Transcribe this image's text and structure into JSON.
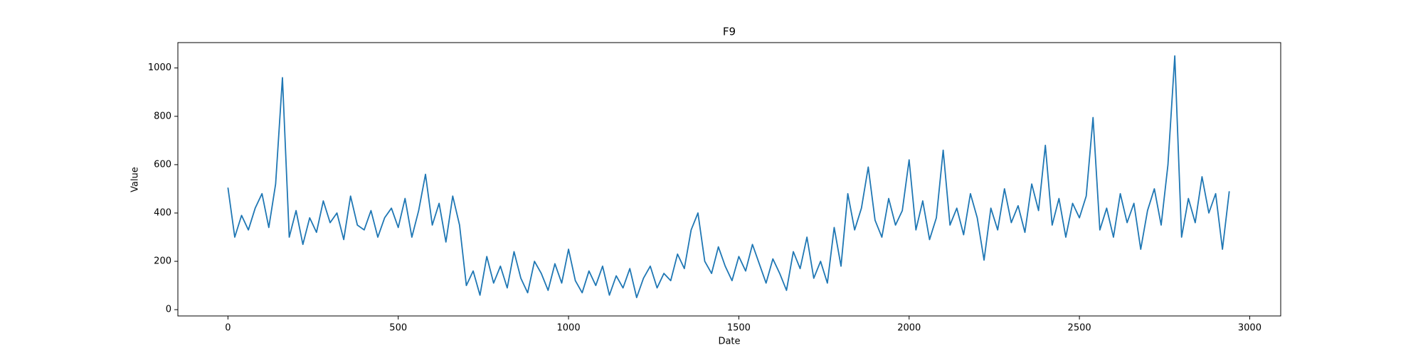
{
  "chart_data": {
    "type": "line",
    "title": "F9",
    "x_label": "Date",
    "y_label": "Value",
    "color": "#1f77b4",
    "x": [
      0,
      20,
      40,
      60,
      80,
      100,
      120,
      140,
      160,
      180,
      200,
      220,
      240,
      260,
      280,
      300,
      320,
      340,
      360,
      380,
      400,
      420,
      440,
      460,
      480,
      500,
      520,
      540,
      560,
      580,
      600,
      620,
      640,
      660,
      680,
      700,
      720,
      740,
      760,
      780,
      800,
      820,
      840,
      860,
      880,
      900,
      920,
      940,
      960,
      980,
      1000,
      1020,
      1040,
      1060,
      1080,
      1100,
      1120,
      1140,
      1160,
      1180,
      1200,
      1220,
      1240,
      1260,
      1280,
      1300,
      1320,
      1340,
      1360,
      1380,
      1400,
      1420,
      1440,
      1460,
      1480,
      1500,
      1520,
      1540,
      1560,
      1580,
      1600,
      1620,
      1640,
      1660,
      1680,
      1700,
      1720,
      1740,
      1760,
      1780,
      1800,
      1820,
      1840,
      1860,
      1880,
      1900,
      1920,
      1940,
      1960,
      1980,
      2000,
      2020,
      2040,
      2060,
      2080,
      2100,
      2120,
      2140,
      2160,
      2180,
      2200,
      2220,
      2240,
      2260,
      2280,
      2300,
      2320,
      2340,
      2360,
      2380,
      2400,
      2420,
      2440,
      2460,
      2480,
      2500,
      2520,
      2540,
      2560,
      2580,
      2600,
      2620,
      2640,
      2660,
      2680,
      2700,
      2720,
      2740,
      2760,
      2780,
      2800,
      2820,
      2840,
      2860,
      2880,
      2900,
      2920,
      2940
    ],
    "values": [
      505,
      300,
      390,
      330,
      420,
      480,
      340,
      520,
      960,
      300,
      410,
      270,
      380,
      320,
      450,
      360,
      400,
      290,
      470,
      350,
      330,
      410,
      300,
      380,
      420,
      340,
      460,
      300,
      410,
      560,
      350,
      440,
      280,
      470,
      350,
      100,
      160,
      60,
      220,
      110,
      180,
      90,
      240,
      130,
      70,
      200,
      150,
      80,
      190,
      110,
      250,
      120,
      70,
      160,
      100,
      180,
      60,
      140,
      90,
      170,
      50,
      130,
      180,
      90,
      150,
      120,
      230,
      170,
      330,
      400,
      200,
      150,
      260,
      180,
      120,
      220,
      160,
      270,
      190,
      110,
      210,
      150,
      80,
      240,
      170,
      300,
      130,
      200,
      110,
      340,
      180,
      480,
      330,
      420,
      590,
      370,
      300,
      460,
      350,
      410,
      620,
      330,
      450,
      290,
      380,
      660,
      350,
      420,
      310,
      480,
      380,
      205,
      420,
      330,
      500,
      360,
      430,
      320,
      520,
      410,
      680,
      350,
      460,
      300,
      440,
      380,
      470,
      795,
      330,
      420,
      300,
      480,
      360,
      440,
      250,
      410,
      500,
      350,
      600,
      1050,
      300,
      460,
      360,
      550,
      400,
      480,
      250,
      490
    ],
    "xlim": [
      -147,
      3091
    ],
    "ylim": [
      -26,
      1105
    ],
    "xticks": [
      0,
      500,
      1000,
      1500,
      2000,
      2500,
      3000
    ],
    "yticks": [
      0,
      200,
      400,
      600,
      800,
      1000
    ]
  }
}
